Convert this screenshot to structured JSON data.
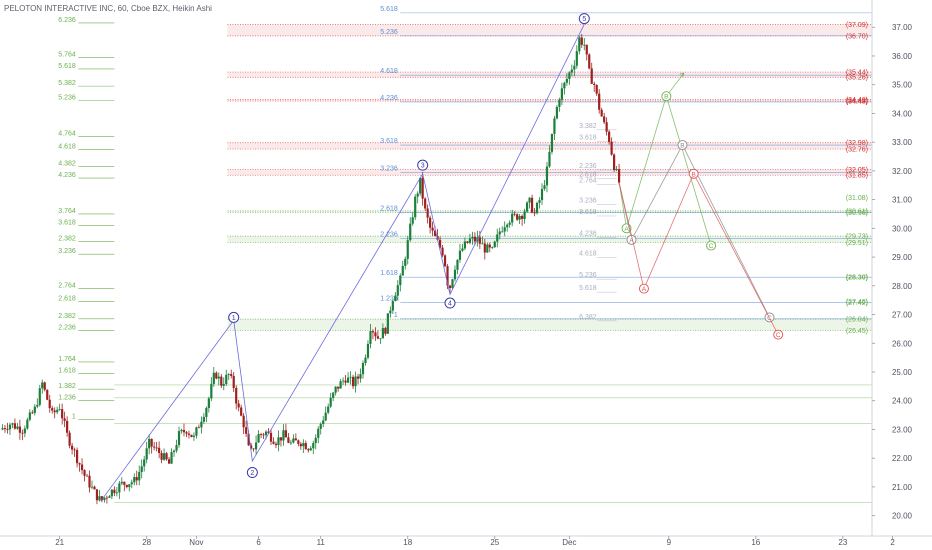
{
  "title": "PELOTON INTERACTIVE INC, 60, Cboe BZX, Heikin Ashi",
  "colors": {
    "up": "#26a69a",
    "down": "#ef5350",
    "up_candle": "#1b7f3b",
    "down_candle": "#a01f1f",
    "wave_line": "#6b6be0",
    "wave_circle": "#3a3aa8",
    "fib_blue": "#5b8fd6",
    "fib_green": "#6ab04c",
    "fib_red": "#e05050",
    "axis_text": "#50535e"
  },
  "chart_data": {
    "type": "candlestick",
    "y_axis": {
      "min": 19.5,
      "max": 37.6,
      "ticks": [
        "37.00",
        "36.00",
        "35.00",
        "34.00",
        "33.00",
        "32.00",
        "31.00",
        "30.00",
        "29.00",
        "28.00",
        "27.00",
        "26.00",
        "25.00",
        "24.00",
        "23.00",
        "22.00",
        "21.00",
        "20.00"
      ]
    },
    "x_axis": {
      "ticks": [
        {
          "label": "21",
          "day": 0
        },
        {
          "label": "28",
          "day": 7
        },
        {
          "label": "Nov",
          "day": 11
        },
        {
          "label": "6",
          "day": 16
        },
        {
          "label": "11",
          "day": 21
        },
        {
          "label": "18",
          "day": 28
        },
        {
          "label": "25",
          "day": 35
        },
        {
          "label": "Dec",
          "day": 41
        },
        {
          "label": "9",
          "day": 49
        },
        {
          "label": "16",
          "day": 56
        },
        {
          "label": "23",
          "day": 63
        },
        {
          "label": "2",
          "day": 67
        }
      ],
      "day_min": -4.8,
      "day_max": 68
    },
    "price_path": [
      [
        -4.8,
        23.0
      ],
      [
        -4.0,
        23.2
      ],
      [
        -3.0,
        23.0
      ],
      [
        -2.0,
        23.7
      ],
      [
        -1.4,
        24.6
      ],
      [
        -0.6,
        23.5
      ],
      [
        0.0,
        23.8
      ],
      [
        0.6,
        22.8
      ],
      [
        1.2,
        22.2
      ],
      [
        2.0,
        21.4
      ],
      [
        2.8,
        20.8
      ],
      [
        3.3,
        20.5
      ],
      [
        4.0,
        20.8
      ],
      [
        5.0,
        21.1
      ],
      [
        6.0,
        21.2
      ],
      [
        6.5,
        21.6
      ],
      [
        7.2,
        22.5
      ],
      [
        8.0,
        22.2
      ],
      [
        8.8,
        21.8
      ],
      [
        9.6,
        22.8
      ],
      [
        10.2,
        23.0
      ],
      [
        10.8,
        22.7
      ],
      [
        11.4,
        23.4
      ],
      [
        11.9,
        23.9
      ],
      [
        12.5,
        25.0
      ],
      [
        13.0,
        24.6
      ],
      [
        13.6,
        24.9
      ],
      [
        14.0,
        24.5
      ],
      [
        14.3,
        23.8
      ],
      [
        14.8,
        23.2
      ],
      [
        15.3,
        22.1
      ],
      [
        16.0,
        22.8
      ],
      [
        16.6,
        22.9
      ],
      [
        17.4,
        22.6
      ],
      [
        18.0,
        22.8
      ],
      [
        18.6,
        22.5
      ],
      [
        19.3,
        22.6
      ],
      [
        20.0,
        22.4
      ],
      [
        20.5,
        22.6
      ],
      [
        21.0,
        23.2
      ],
      [
        21.6,
        23.8
      ],
      [
        22.2,
        24.4
      ],
      [
        23.0,
        24.8
      ],
      [
        23.6,
        24.6
      ],
      [
        24.0,
        24.8
      ],
      [
        24.5,
        25.4
      ],
      [
        25.0,
        26.6
      ],
      [
        25.6,
        26.2
      ],
      [
        26.2,
        26.5
      ],
      [
        26.8,
        27.6
      ],
      [
        27.4,
        28.2
      ],
      [
        28.0,
        29.5
      ],
      [
        28.6,
        31.0
      ],
      [
        29.0,
        31.6
      ],
      [
        29.4,
        30.6
      ],
      [
        29.8,
        30.0
      ],
      [
        30.4,
        29.5
      ],
      [
        30.9,
        29.1
      ],
      [
        31.3,
        27.8
      ],
      [
        31.8,
        28.7
      ],
      [
        32.4,
        29.3
      ],
      [
        33.0,
        29.6
      ],
      [
        33.6,
        29.6
      ],
      [
        34.2,
        29.3
      ],
      [
        34.8,
        29.2
      ],
      [
        35.4,
        29.9
      ],
      [
        36.0,
        30.3
      ],
      [
        36.6,
        30.4
      ],
      [
        37.2,
        30.5
      ],
      [
        37.8,
        30.9
      ],
      [
        38.2,
        30.5
      ],
      [
        38.7,
        31.1
      ],
      [
        39.2,
        32.0
      ],
      [
        39.8,
        33.8
      ],
      [
        40.2,
        34.6
      ],
      [
        40.6,
        35.0
      ],
      [
        41.0,
        35.4
      ],
      [
        41.4,
        35.8
      ],
      [
        41.8,
        36.6
      ],
      [
        42.2,
        36.4
      ],
      [
        42.6,
        35.4
      ],
      [
        43.0,
        35.0
      ],
      [
        43.4,
        34.2
      ],
      [
        43.8,
        33.6
      ],
      [
        44.2,
        33.1
      ],
      [
        44.6,
        32.2
      ],
      [
        45.0,
        31.6
      ]
    ],
    "wave_count": [
      {
        "label": "1",
        "day": 14.0,
        "price": 26.8,
        "circle_price": 26.9
      },
      {
        "label": "2",
        "day": 15.5,
        "price": 21.9,
        "circle_price": 21.5
      },
      {
        "label": "3",
        "day": 29.2,
        "price": 31.9,
        "circle_price": 32.2
      },
      {
        "label": "4",
        "day": 31.4,
        "price": 27.7,
        "circle_price": 27.4
      },
      {
        "label": "5",
        "day": 42.2,
        "price": 37.1,
        "circle_price": 37.3
      }
    ],
    "projections": [
      {
        "name": "green",
        "points": [
          {
            "label": "A",
            "day": 45.6,
            "price": 30.0
          },
          {
            "label": "B",
            "day": 48.8,
            "price": 34.6
          },
          {
            "label": "C",
            "day": 52.4,
            "price": 29.4
          }
        ],
        "arrow_end": {
          "day": 50.2,
          "price": 35.4
        }
      },
      {
        "name": "gray",
        "points": [
          {
            "label": "A",
            "day": 46.0,
            "price": 29.6
          },
          {
            "label": "B",
            "day": 50.1,
            "price": 32.9
          },
          {
            "label": "C",
            "day": 57.1,
            "price": 26.9
          }
        ]
      },
      {
        "name": "red",
        "points": [
          {
            "label": "A",
            "day": 47.0,
            "price": 27.9
          },
          {
            "label": "B",
            "day": 51.0,
            "price": 31.9
          },
          {
            "label": "C",
            "day": 57.8,
            "price": 26.3
          }
        ]
      }
    ],
    "fib_blue_levels": [
      {
        "label": "5.618",
        "price": 37.5
      },
      {
        "label": "5.236",
        "price": 36.7
      },
      {
        "label": "4.618",
        "price": 35.33
      },
      {
        "label": "4.236",
        "price": 34.4
      },
      {
        "label": "3.618",
        "price": 32.9
      },
      {
        "label": "3.236",
        "price": 31.95
      },
      {
        "label": "2.618",
        "price": 30.55
      },
      {
        "label": "2.236",
        "price": 29.65
      },
      {
        "label": "1.618",
        "price": 28.3
      },
      {
        "label": "1.236",
        "price": 27.42
      },
      {
        "label": "1",
        "price": 26.85
      }
    ],
    "fib_green_levels": [
      {
        "label": "6.236",
        "price": 37.15
      },
      {
        "label": "5.764",
        "price": 35.95
      },
      {
        "label": "5.618",
        "price": 35.55
      },
      {
        "label": "5.382",
        "price": 34.95
      },
      {
        "label": "5.236",
        "price": 34.45
      },
      {
        "label": "4.764",
        "price": 33.2
      },
      {
        "label": "4.618",
        "price": 32.75
      },
      {
        "label": "4.382",
        "price": 32.15
      },
      {
        "label": "4.236",
        "price": 31.75
      },
      {
        "label": "3.764",
        "price": 30.5
      },
      {
        "label": "3.618",
        "price": 30.1
      },
      {
        "label": "2.382",
        "price": 29.55
      },
      {
        "label": "3.236",
        "price": 29.1
      },
      {
        "label": "2.764",
        "price": 27.9
      },
      {
        "label": "2.618",
        "price": 27.45
      },
      {
        "label": "2.382",
        "price": 26.85
      },
      {
        "label": "2.236",
        "price": 26.45
      },
      {
        "label": "1.764",
        "price": 25.35
      },
      {
        "label": "1.618",
        "price": 24.95
      },
      {
        "label": "1.382",
        "price": 24.4
      },
      {
        "label": "1.236",
        "price": 24.0
      },
      {
        "label": "1",
        "price": 23.35
      }
    ],
    "fib_faint_levels": [
      {
        "label": "3.382",
        "price": 33.5
      },
      {
        "label": "3.618",
        "price": 33.1
      },
      {
        "label": "2.236",
        "price": 32.1
      },
      {
        "label": "2.618",
        "price": 31.8
      },
      {
        "label": "2.764",
        "price": 31.6
      },
      {
        "label": "3.236",
        "price": 30.9
      },
      {
        "label": "3.618",
        "price": 30.5
      },
      {
        "label": "4.236",
        "price": 29.75
      },
      {
        "label": "4.618",
        "price": 29.05
      },
      {
        "label": "5.236",
        "price": 28.3
      },
      {
        "label": "5.618",
        "price": 27.85
      },
      {
        "label": "6.382",
        "price": 26.85
      }
    ],
    "price_labels": [
      {
        "label": "(37.09)",
        "price": 37.09,
        "color": "red"
      },
      {
        "label": "(36.70)",
        "price": 36.7,
        "color": "red"
      },
      {
        "label": "(35.44)",
        "price": 35.44,
        "color": "red"
      },
      {
        "label": "(35.26)",
        "price": 35.26,
        "color": "red"
      },
      {
        "label": "(34.48)",
        "price": 34.48,
        "color": "red"
      },
      {
        "label": "(34.43)",
        "price": 34.43,
        "color": "red"
      },
      {
        "label": "(32.98)",
        "price": 32.98,
        "color": "red"
      },
      {
        "label": "(32.76)",
        "price": 32.76,
        "color": "red"
      },
      {
        "label": "(32.05)",
        "price": 32.05,
        "color": "red"
      },
      {
        "label": "(31.85)",
        "price": 31.85,
        "color": "red"
      },
      {
        "label": "(31.08)",
        "price": 31.08,
        "color": "green"
      },
      {
        "label": "(30.61)",
        "price": 30.61,
        "color": "green"
      },
      {
        "label": "(30.56)",
        "price": 30.56,
        "color": "green"
      },
      {
        "label": "(29.73)",
        "price": 29.73,
        "color": "green"
      },
      {
        "label": "(29.51)",
        "price": 29.51,
        "color": "green"
      },
      {
        "label": "(28.30)",
        "price": 28.3,
        "color": "green"
      },
      {
        "label": "(27.46)",
        "price": 27.46,
        "color": "green"
      },
      {
        "label": "(27.42)",
        "price": 27.42,
        "color": "green"
      },
      {
        "label": "(26.84)",
        "price": 26.84,
        "color": "green"
      },
      {
        "label": "(26.45)",
        "price": 26.45,
        "color": "green"
      }
    ],
    "red_zones": [
      {
        "from": 36.7,
        "to": 37.09
      },
      {
        "from": 35.26,
        "to": 35.44
      },
      {
        "from": 34.43,
        "to": 34.48
      },
      {
        "from": 32.76,
        "to": 32.98
      },
      {
        "from": 31.85,
        "to": 32.05
      }
    ],
    "green_zones": [
      {
        "from": 30.56,
        "to": 30.61
      },
      {
        "from": 29.51,
        "to": 29.73
      },
      {
        "from": 26.45,
        "to": 26.84
      }
    ],
    "legend": "none",
    "grid": false
  }
}
